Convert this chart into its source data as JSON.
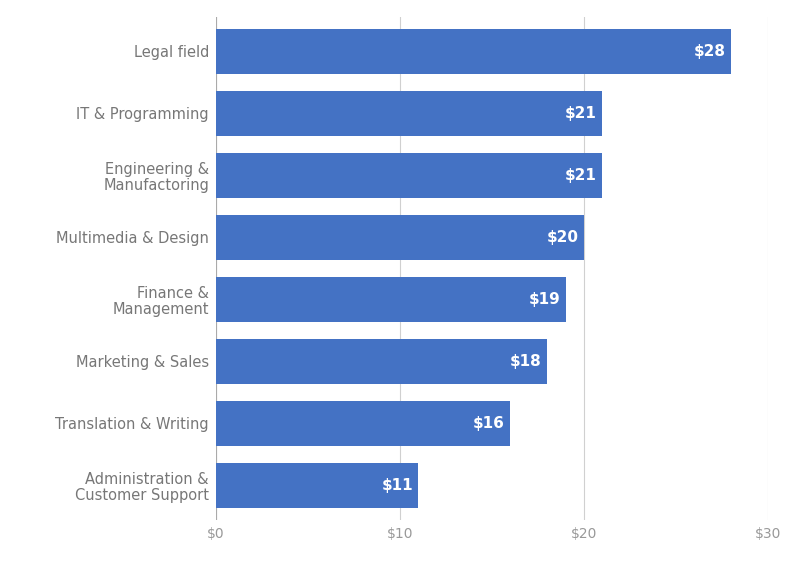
{
  "categories": [
    "Administration &\nCustomer Support",
    "Translation & Writing",
    "Marketing & Sales",
    "Finance &\nManagement",
    "Multimedia & Design",
    "Engineering &\nManufactoring",
    "IT & Programming",
    "Legal field"
  ],
  "values": [
    11,
    16,
    18,
    19,
    20,
    21,
    21,
    28
  ],
  "bar_color": "#4472c4",
  "bar_labels": [
    "$11",
    "$16",
    "$18",
    "$19",
    "$20",
    "$21",
    "$21",
    "$28"
  ],
  "xlim": [
    0,
    30
  ],
  "xticks": [
    0,
    10,
    20,
    30
  ],
  "xtick_labels": [
    "$0",
    "$10",
    "$20",
    "$30"
  ],
  "background_color": "#ffffff",
  "grid_color": "#d0d0d0",
  "label_fontsize": 10.5,
  "tick_fontsize": 10,
  "bar_label_fontsize": 11,
  "bar_label_color": "#ffffff",
  "category_label_color": "#777777",
  "tick_label_color": "#999999"
}
